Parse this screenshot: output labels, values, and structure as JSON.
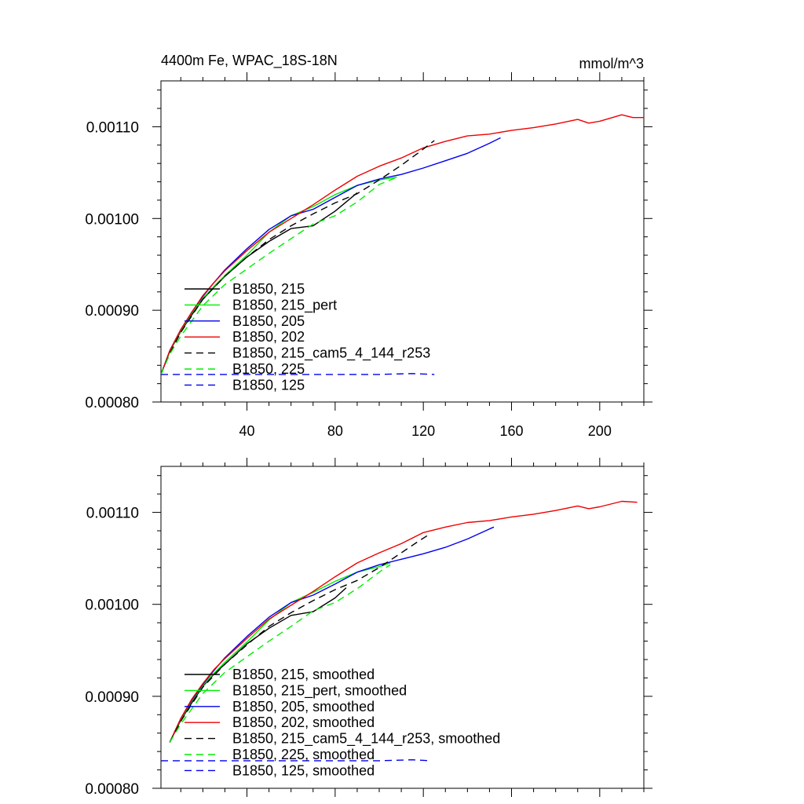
{
  "chart_data": [
    {
      "type": "line",
      "title": "4400m Fe, WPAC_18S-18N",
      "units": "mmol/m^3",
      "xlabel": "",
      "ylabel": "",
      "xlim": [
        1,
        220
      ],
      "ylim": [
        0.0008,
        0.00115
      ],
      "xticks": [
        40,
        80,
        120,
        160,
        200
      ],
      "xticklabels": [
        "40",
        "80",
        "120",
        "160",
        "200"
      ],
      "yticks": [
        0.0008,
        0.0009,
        0.001,
        0.0011
      ],
      "yticklabels": [
        "0.00080",
        "0.00090",
        "0.00100",
        "0.00110"
      ],
      "legend_position": "bottom-left",
      "series": [
        {
          "name": "B1850, 215",
          "color": "#000000",
          "dash": "solid",
          "x": [
            1,
            5,
            10,
            15,
            20,
            25,
            30,
            40,
            50,
            60,
            70,
            80,
            90
          ],
          "y": [
            0.00083,
            0.000855,
            0.000877,
            0.000895,
            0.000912,
            0.000925,
            0.000937,
            0.000958,
            0.000975,
            0.000989,
            0.000992,
            0.001008,
            0.001028
          ]
        },
        {
          "name": "B1850, 215_pert",
          "color": "#00ee00",
          "dash": "solid",
          "x": [
            1,
            5,
            10,
            15,
            20,
            25,
            30,
            40,
            50,
            60,
            70,
            80,
            90,
            100,
            108
          ],
          "y": [
            0.00083,
            0.000855,
            0.000878,
            0.000897,
            0.000913,
            0.000926,
            0.000938,
            0.00096,
            0.000985,
            0.001003,
            0.001013,
            0.001026,
            0.001036,
            0.001042,
            0.001045
          ]
        },
        {
          "name": "B1850, 205",
          "color": "#0000ee",
          "dash": "solid",
          "x": [
            1,
            5,
            10,
            15,
            20,
            25,
            30,
            40,
            50,
            60,
            70,
            80,
            90,
            100,
            110,
            120,
            130,
            140,
            150,
            155
          ],
          "y": [
            0.00083,
            0.000856,
            0.000879,
            0.000898,
            0.000915,
            0.00093,
            0.000944,
            0.000967,
            0.000988,
            0.001003,
            0.00101,
            0.001023,
            0.001036,
            0.001043,
            0.001048,
            0.001055,
            0.001063,
            0.001071,
            0.001082,
            0.001088
          ]
        },
        {
          "name": "B1850, 202",
          "color": "#ee0000",
          "dash": "solid",
          "x": [
            1,
            5,
            10,
            15,
            20,
            25,
            30,
            40,
            50,
            60,
            70,
            80,
            90,
            100,
            110,
            120,
            130,
            140,
            150,
            160,
            170,
            180,
            190,
            195,
            200,
            210,
            215,
            220
          ],
          "y": [
            0.00083,
            0.000856,
            0.000879,
            0.000898,
            0.000916,
            0.00093,
            0.000943,
            0.000965,
            0.000985,
            0.001,
            0.001015,
            0.001031,
            0.001046,
            0.001057,
            0.001066,
            0.001077,
            0.001084,
            0.00109,
            0.001092,
            0.001096,
            0.001099,
            0.001103,
            0.001108,
            0.001104,
            0.001106,
            0.001113,
            0.00111,
            0.00111
          ]
        },
        {
          "name": "B1850, 215_cam5_4_144_r253",
          "color": "#000000",
          "dash": "dashed",
          "x": [
            1,
            5,
            10,
            20,
            30,
            40,
            50,
            60,
            70,
            80,
            90,
            100,
            110,
            118,
            125
          ],
          "y": [
            0.00083,
            0.000853,
            0.000876,
            0.000912,
            0.000937,
            0.000958,
            0.000977,
            0.000992,
            0.001005,
            0.001017,
            0.001027,
            0.001042,
            0.001058,
            0.001072,
            0.001085
          ]
        },
        {
          "name": "B1850, 225",
          "color": "#00ee00",
          "dash": "dashed",
          "x": [
            1,
            5,
            10,
            20,
            30,
            40,
            50,
            60,
            70,
            80,
            90,
            100,
            108
          ],
          "y": [
            0.00083,
            0.000852,
            0.000872,
            0.000905,
            0.000928,
            0.000945,
            0.000962,
            0.000978,
            0.000994,
            0.001003,
            0.001018,
            0.001037,
            0.001045
          ]
        },
        {
          "name": "B1850, 125",
          "color": "#0000ee",
          "dash": "dashed",
          "x": [
            1,
            20,
            40,
            60,
            80,
            100,
            115,
            125
          ],
          "y": [
            0.00083,
            0.00083,
            0.00083,
            0.00083,
            0.00083,
            0.00083,
            0.000831,
            0.00083
          ]
        }
      ]
    },
    {
      "type": "line",
      "title": "",
      "xlabel": "",
      "ylabel": "",
      "xlim": [
        1,
        220
      ],
      "ylim": [
        0.0008,
        0.00115
      ],
      "xticks": [
        40,
        80,
        120,
        160,
        200
      ],
      "xticklabels": [
        "",
        "",
        "",
        "",
        ""
      ],
      "yticks": [
        0.0008,
        0.0009,
        0.001,
        0.0011
      ],
      "yticklabels": [
        "0.00080",
        "0.00090",
        "0.00100",
        "0.00110"
      ],
      "legend_position": "bottom-left",
      "series": [
        {
          "name": "B1850, 215, smoothed",
          "color": "#000000",
          "dash": "solid",
          "x": [
            5,
            10,
            15,
            20,
            25,
            30,
            40,
            50,
            60,
            70,
            80,
            85
          ],
          "y": [
            0.00085,
            0.000874,
            0.000893,
            0.000911,
            0.000924,
            0.000935,
            0.000957,
            0.000974,
            0.000988,
            0.000992,
            0.001007,
            0.001018
          ]
        },
        {
          "name": "B1850, 215_pert, smoothed",
          "color": "#00ee00",
          "dash": "solid",
          "x": [
            5,
            10,
            15,
            20,
            25,
            30,
            40,
            50,
            60,
            70,
            80,
            90,
            100,
            105
          ],
          "y": [
            0.00085,
            0.000875,
            0.000895,
            0.000912,
            0.000925,
            0.000937,
            0.000959,
            0.000983,
            0.001002,
            0.001013,
            0.001025,
            0.001035,
            0.001041,
            0.001045
          ]
        },
        {
          "name": "B1850, 205, smoothed",
          "color": "#0000ee",
          "dash": "solid",
          "x": [
            5,
            10,
            15,
            20,
            25,
            30,
            40,
            50,
            60,
            70,
            80,
            90,
            100,
            110,
            120,
            130,
            140,
            150,
            152
          ],
          "y": [
            0.00085,
            0.000876,
            0.000896,
            0.000913,
            0.000928,
            0.000942,
            0.000965,
            0.000986,
            0.001002,
            0.00101,
            0.001022,
            0.001035,
            0.001043,
            0.001049,
            0.001055,
            0.001062,
            0.001071,
            0.001082,
            0.001084
          ]
        },
        {
          "name": "B1850, 202, smoothed",
          "color": "#ee0000",
          "dash": "solid",
          "x": [
            5,
            10,
            15,
            20,
            25,
            30,
            40,
            50,
            60,
            70,
            80,
            90,
            100,
            110,
            120,
            130,
            140,
            150,
            160,
            170,
            180,
            190,
            195,
            200,
            210,
            217
          ],
          "y": [
            0.00085,
            0.000876,
            0.000897,
            0.000914,
            0.000929,
            0.000941,
            0.000963,
            0.000984,
            0.000999,
            0.001014,
            0.00103,
            0.001045,
            0.001056,
            0.001066,
            0.001078,
            0.001084,
            0.001089,
            0.001091,
            0.001095,
            0.001098,
            0.001102,
            0.001107,
            0.001104,
            0.001106,
            0.001112,
            0.001111
          ]
        },
        {
          "name": "B1850, 215_cam5_4_144_r253, smoothed",
          "color": "#000000",
          "dash": "dashed",
          "x": [
            5,
            10,
            20,
            30,
            40,
            50,
            60,
            70,
            80,
            90,
            100,
            110,
            118,
            122
          ],
          "y": [
            0.00085,
            0.000873,
            0.00091,
            0.000935,
            0.000956,
            0.000976,
            0.000991,
            0.001004,
            0.001016,
            0.001026,
            0.00104,
            0.001056,
            0.001069,
            0.001075
          ]
        },
        {
          "name": "B1850, 225, smoothed",
          "color": "#00ee00",
          "dash": "dashed",
          "x": [
            5,
            10,
            20,
            30,
            40,
            50,
            60,
            70,
            80,
            90,
            100,
            105
          ],
          "y": [
            0.00085,
            0.00087,
            0.000903,
            0.000926,
            0.000943,
            0.00096,
            0.000976,
            0.000993,
            0.001002,
            0.001017,
            0.001035,
            0.001043
          ]
        },
        {
          "name": "B1850, 125, smoothed",
          "color": "#0000ee",
          "dash": "dashed",
          "x": [
            1,
            20,
            40,
            60,
            80,
            100,
            115,
            123
          ],
          "y": [
            0.00083,
            0.00083,
            0.00083,
            0.00083,
            0.00083,
            0.00083,
            0.000831,
            0.00083
          ]
        }
      ]
    }
  ]
}
